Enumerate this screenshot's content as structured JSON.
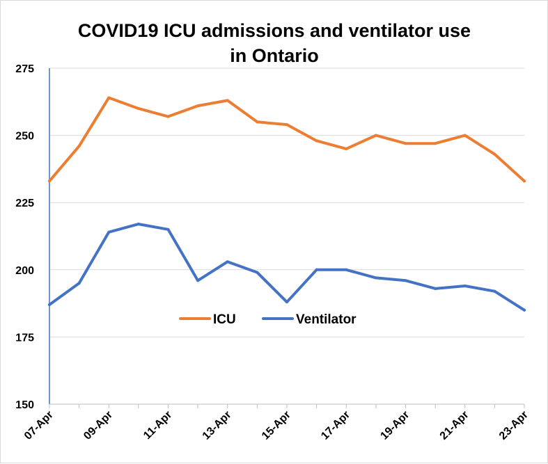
{
  "chart_data": {
    "type": "line",
    "title_lines": [
      "COVID19 ICU admissions and ventilator use",
      "in Ontario"
    ],
    "x": [
      "07-Apr",
      "08-Apr",
      "09-Apr",
      "10-Apr",
      "11-Apr",
      "12-Apr",
      "13-Apr",
      "14-Apr",
      "15-Apr",
      "16-Apr",
      "17-Apr",
      "18-Apr",
      "19-Apr",
      "20-Apr",
      "21-Apr",
      "22-Apr",
      "23-Apr"
    ],
    "x_tick_labels": [
      "07-Apr",
      "09-Apr",
      "11-Apr",
      "13-Apr",
      "15-Apr",
      "17-Apr",
      "19-Apr",
      "21-Apr",
      "23-Apr"
    ],
    "y_ticks": [
      150,
      175,
      200,
      225,
      250,
      275
    ],
    "ylim": [
      150,
      275
    ],
    "grid": true,
    "legend_position": "center",
    "series": [
      {
        "name": "ICU",
        "color": "#ED7D31",
        "values": [
          233,
          246,
          264,
          260,
          257,
          261,
          263,
          255,
          254,
          248,
          245,
          250,
          247,
          247,
          250,
          243,
          233
        ]
      },
      {
        "name": "Ventilator",
        "color": "#4472C4",
        "values": [
          187,
          195,
          214,
          217,
          215,
          196,
          203,
          199,
          188,
          200,
          200,
          197,
          196,
          193,
          194,
          192,
          185
        ]
      }
    ]
  }
}
